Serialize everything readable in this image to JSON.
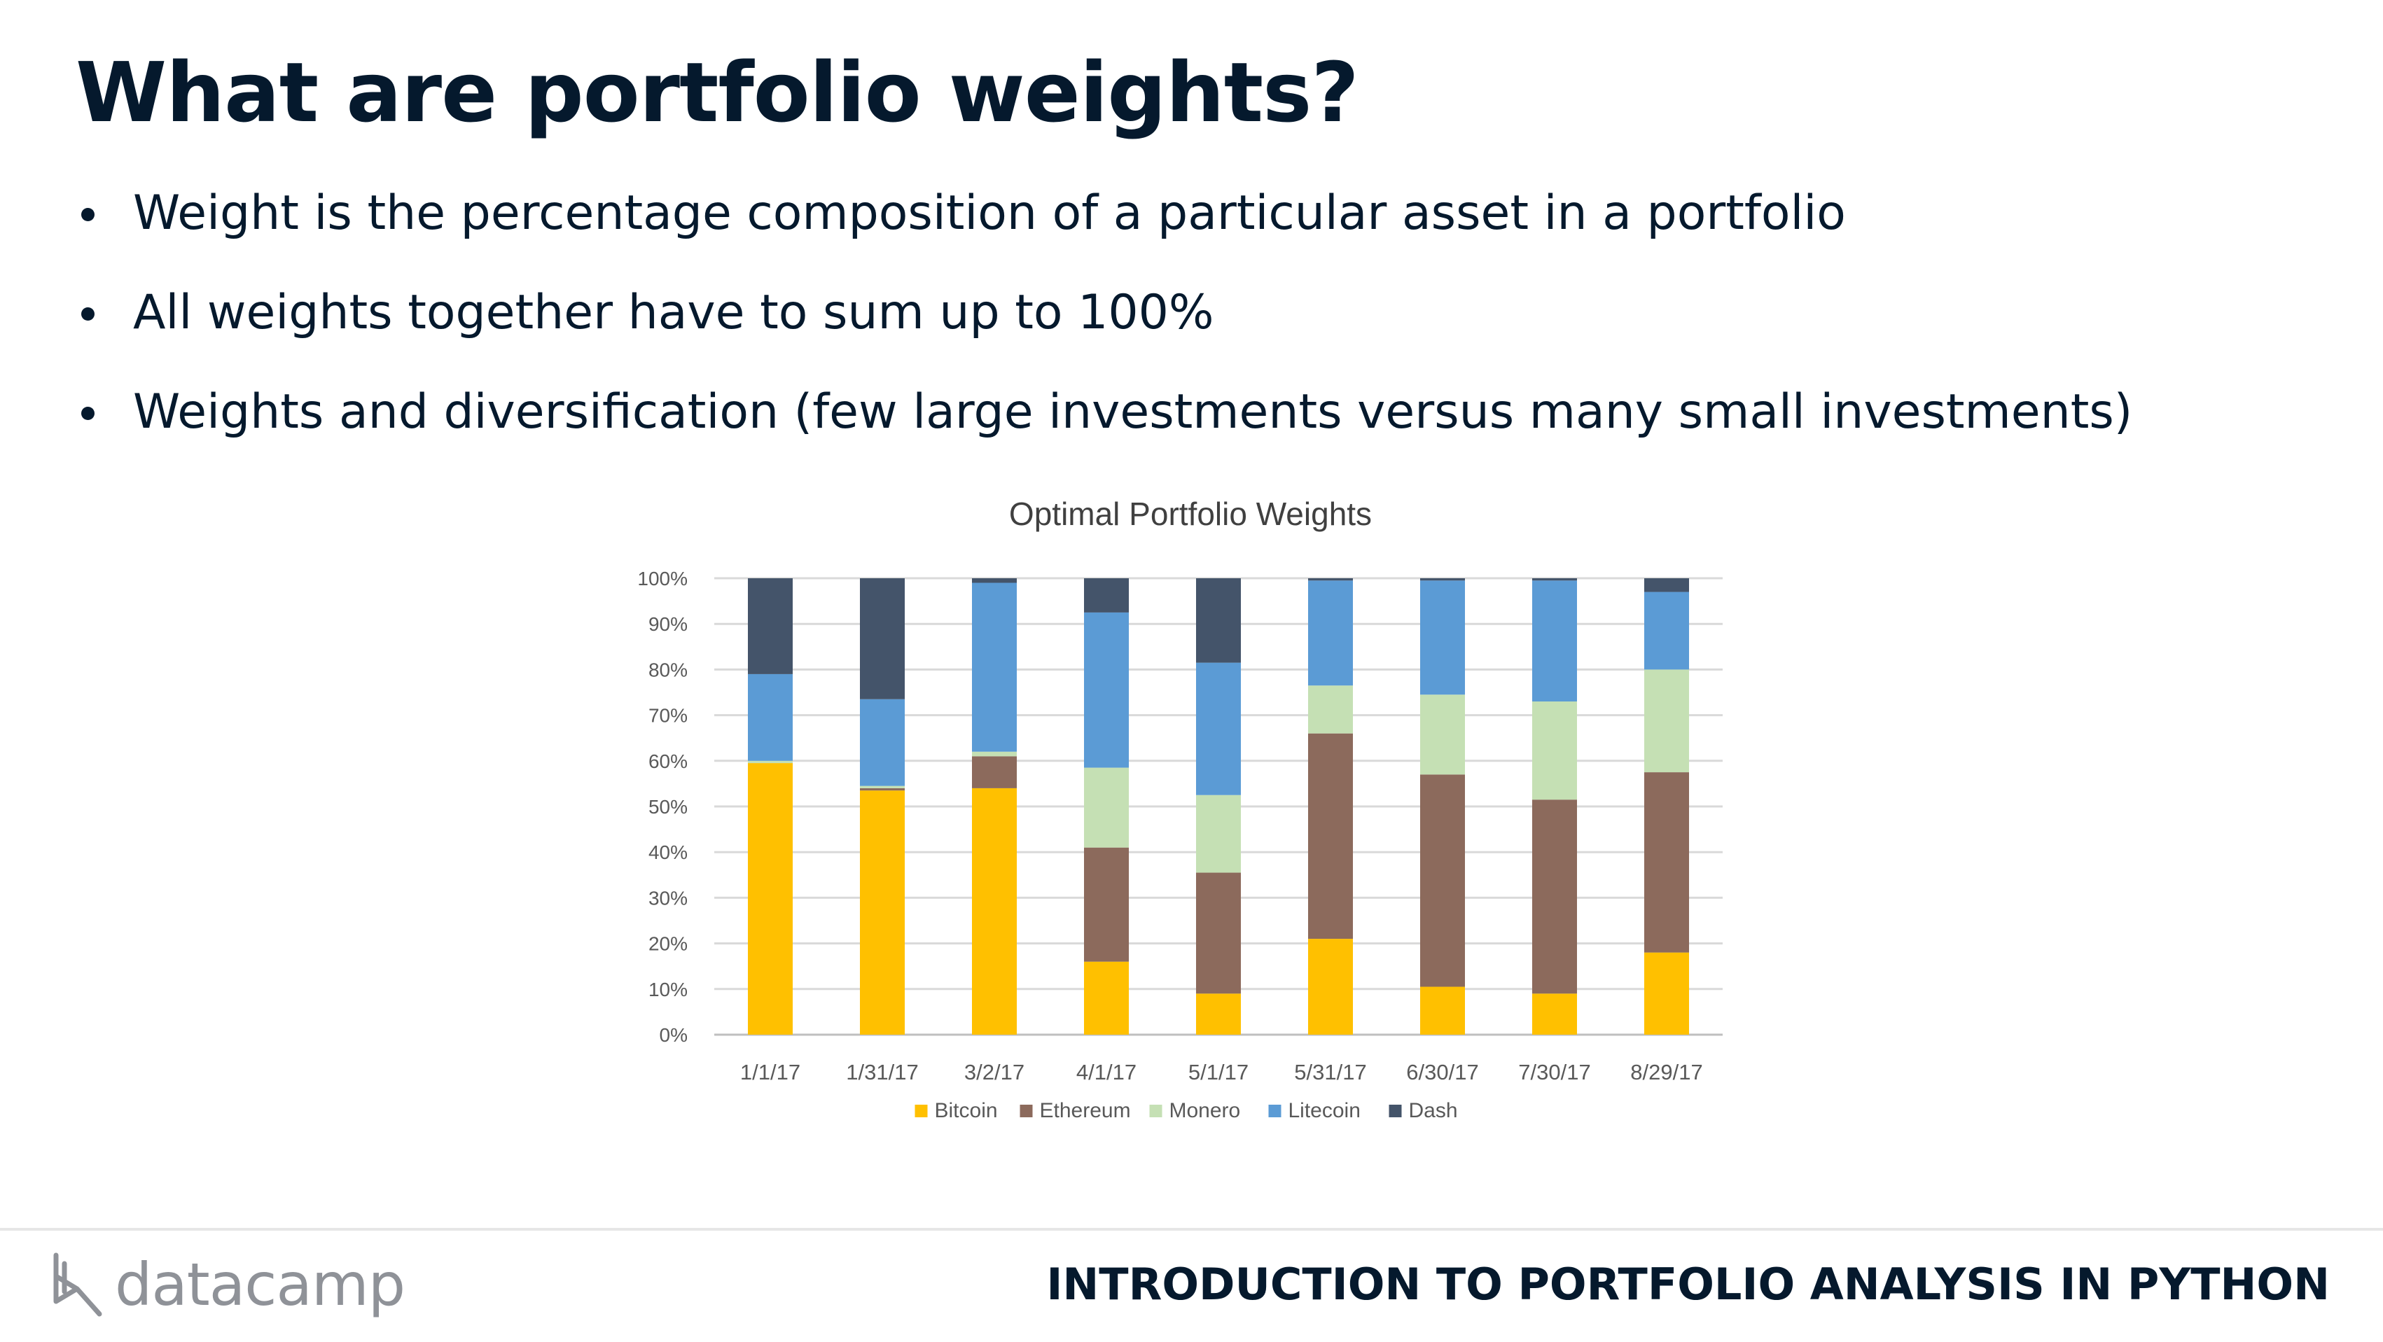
{
  "slide": {
    "title": "What are portfolio weights?",
    "bullets": [
      "Weight is the percentage composition of a particular asset in a portfolio",
      "All weights together have to sum up to 100%",
      "Weights and diversification (few large investments versus many small investments)"
    ]
  },
  "footer": {
    "logo_text": "datacamp",
    "course_title": "INTRODUCTION TO PORTFOLIO ANALYSIS IN PYTHON"
  },
  "chart_data": {
    "type": "bar",
    "stacked": true,
    "title": "Optimal Portfolio Weights",
    "xlabel": "",
    "ylabel": "",
    "ylim": [
      0,
      100
    ],
    "y_ticks": [
      "0%",
      "10%",
      "20%",
      "30%",
      "40%",
      "50%",
      "60%",
      "70%",
      "80%",
      "90%",
      "100%"
    ],
    "grid": true,
    "legend_position": "bottom",
    "categories": [
      "1/1/17",
      "1/31/17",
      "3/2/17",
      "4/1/17",
      "5/1/17",
      "5/31/17",
      "6/30/17",
      "7/30/17",
      "8/29/17"
    ],
    "series": [
      {
        "name": "Bitcoin",
        "color": "#ffc000",
        "values": [
          59.5,
          53.5,
          54,
          16,
          9,
          21,
          10.5,
          9,
          18
        ]
      },
      {
        "name": "Ethereum",
        "color": "#8c6a5c",
        "values": [
          0,
          0.5,
          7,
          25,
          26.5,
          45,
          46.5,
          42.5,
          39.5
        ]
      },
      {
        "name": "Monero",
        "color": "#c5e0b4",
        "values": [
          0.5,
          0.5,
          1,
          17.5,
          17,
          10.5,
          17.5,
          21.5,
          22.5
        ]
      },
      {
        "name": "Litecoin",
        "color": "#5b9bd5",
        "values": [
          19,
          19,
          37,
          34,
          29,
          23,
          25,
          26.5,
          17
        ]
      },
      {
        "name": "Dash",
        "color": "#44546a",
        "values": [
          21,
          26.5,
          1,
          7.5,
          18.5,
          0.5,
          0.5,
          0.5,
          3
        ]
      }
    ]
  }
}
